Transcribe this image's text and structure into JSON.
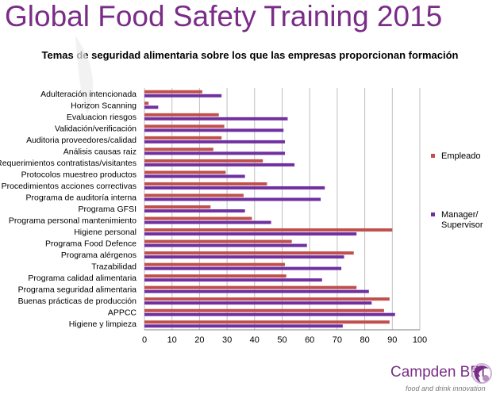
{
  "header": {
    "title": "Global Food Safety Training 2015"
  },
  "colors": {
    "accent": "#7a2d87",
    "empleado": "#c0504d",
    "manager": "#7030a0"
  },
  "logo": {
    "name": "Campden BRI",
    "tagline": "food and drink innovation"
  },
  "chart_data": {
    "type": "bar",
    "orientation": "horizontal",
    "title": "Temas de seguridad alimentaria sobre los que las empresas proporcionan formación",
    "xlabel": "",
    "ylabel": "",
    "xlim": [
      0,
      100
    ],
    "x_ticks": [
      0,
      10,
      20,
      30,
      40,
      50,
      60,
      70,
      80,
      90,
      100
    ],
    "grid": true,
    "legend_position": "right",
    "categories": [
      "Adulteración intencionada",
      "Horizon Scanning",
      "Evaluacion riesgos",
      "Validación/verificación",
      "Auditoria proveedores/calidad",
      "Análisis causas raiz",
      "Requerimientos contratistas/visitantes",
      "Protocolos muestreo productos",
      "Procedimientos acciones correctivas",
      "Programa de auditoría interna",
      "Programa GFSI",
      "Programa personal mantenimiento",
      "Higiene personal",
      "Programa Food Defence",
      "Programa alérgenos",
      "Trazabilidad",
      "Programa calidad alimentaria",
      "Programa seguridad alimentaria",
      "Buenas prácticas de producción",
      "APPCC",
      "Higiene y limpieza"
    ],
    "series": [
      {
        "name": "Empleado",
        "color": "#c0504d",
        "values": [
          21,
          1.5,
          27,
          29,
          28,
          25,
          43,
          29.5,
          44.5,
          36,
          24,
          39,
          90,
          53.5,
          76,
          51,
          51.5,
          77,
          89,
          87,
          89
        ]
      },
      {
        "name": "Manager/\nSupervisor",
        "legend_lines": [
          "Manager/",
          "Supervisor"
        ],
        "color": "#7030a0",
        "values": [
          28,
          5,
          52,
          50.5,
          51,
          51,
          54.5,
          36.5,
          65.5,
          64,
          36.5,
          46,
          77,
          59,
          72.5,
          71.5,
          64.5,
          81.5,
          82.5,
          91,
          72
        ]
      }
    ]
  }
}
